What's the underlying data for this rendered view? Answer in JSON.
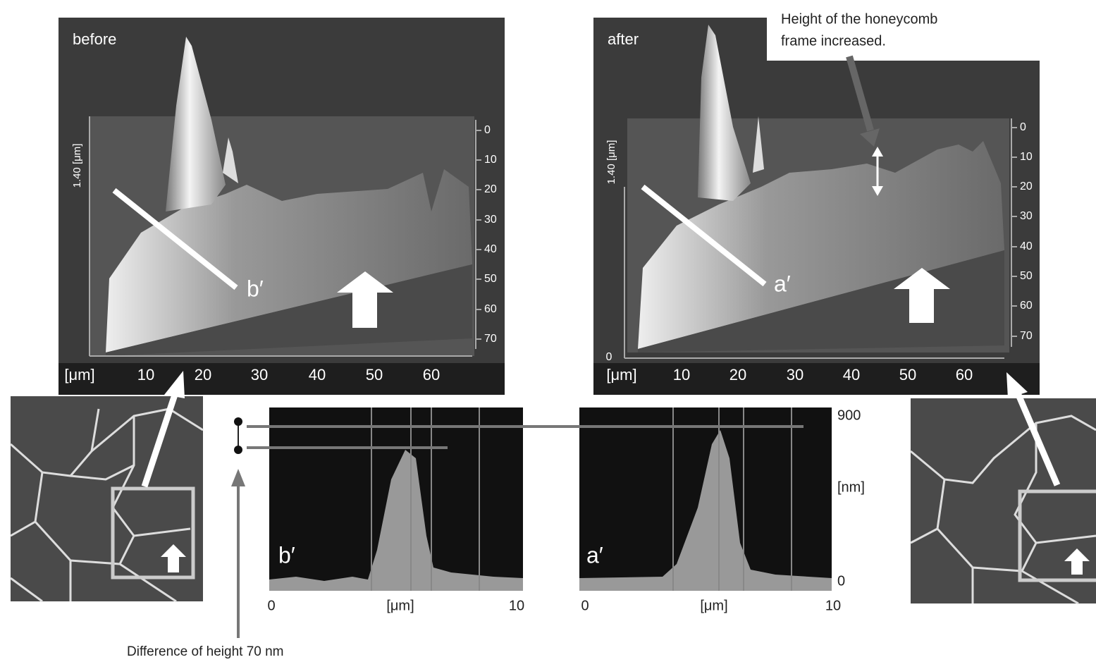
{
  "panels": [
    {
      "label": "before",
      "z_label": "1.40 [μm]",
      "y_ticks": [
        0,
        10,
        20,
        30,
        40,
        50,
        60,
        70
      ],
      "x_unit": "[μm]",
      "x_ticks": [
        10,
        20,
        30,
        40,
        50,
        60
      ],
      "line_label": "b′"
    },
    {
      "label": "after",
      "z_label": "1.40 [μm]",
      "z_zero": "0",
      "y_ticks": [
        0,
        10,
        20,
        30,
        40,
        50,
        60,
        70
      ],
      "x_unit": "[μm]",
      "x_ticks": [
        10,
        20,
        30,
        40,
        50,
        60
      ],
      "line_label": "a′"
    }
  ],
  "annotation": [
    "Height of the honeycomb",
    "frame increased."
  ],
  "profiles": [
    {
      "label": "b′",
      "x_start": "0",
      "x_unit": "[μm]",
      "x_end": "10"
    },
    {
      "label": "a′",
      "x_start": "0",
      "x_unit": "[μm]",
      "x_end": "10"
    }
  ],
  "profile_y": [
    "900",
    "[nm]",
    "0"
  ],
  "note": "Difference of height 70 nm"
}
